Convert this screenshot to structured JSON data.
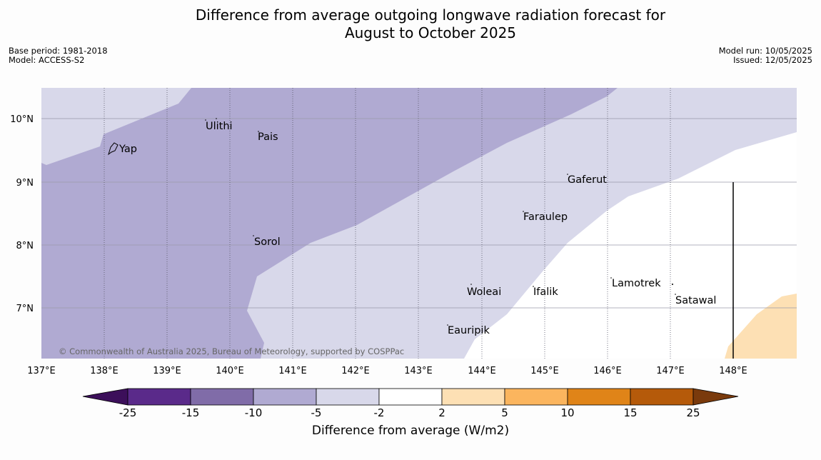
{
  "title_line1": "Difference from average outgoing longwave radiation forecast for",
  "title_line2": "August to October 2025",
  "meta": {
    "base_period": "Base period: 1981-2018",
    "model": "Model: ACCESS-S2",
    "model_run": "Model run: 10/05/2025",
    "issued": "Issued: 12/05/2025"
  },
  "copyright": "© Commonwealth of Australia 2025, Bureau of Meteorology, supported by COSPPac",
  "x_ticks": [
    "137°E",
    "138°E",
    "139°E",
    "140°E",
    "141°E",
    "142°E",
    "143°E",
    "144°E",
    "145°E",
    "146°E",
    "147°E",
    "148°E"
  ],
  "y_ticks": [
    "10°N",
    "9°N",
    "8°N",
    "7°N"
  ],
  "places": [
    {
      "name": "Yap"
    },
    {
      "name": "Ulithi"
    },
    {
      "name": "Pais"
    },
    {
      "name": "Gaferut"
    },
    {
      "name": "Faraulep"
    },
    {
      "name": "Sorol"
    },
    {
      "name": "Woleai"
    },
    {
      "name": "Ifalik"
    },
    {
      "name": "Lamotrek"
    },
    {
      "name": "Satawal"
    },
    {
      "name": "Eauripik"
    }
  ],
  "colorbar": {
    "label": "Difference from average (W/m2)",
    "ticks": [
      "-25",
      "-15",
      "-10",
      "-5",
      "-2",
      "2",
      "5",
      "10",
      "15",
      "25"
    ],
    "colors": {
      "below_-25": "#3c0f5a",
      "-25_-15": "#5a2a8a",
      "-15_-10": "#806ca8",
      "-10_-5": "#b0aad2",
      "-5_-2": "#d8d8ea",
      "-2_2": "#ffffff",
      "2_5": "#fde0b4",
      "5_10": "#fbb55e",
      "10_15": "#e08418",
      "15_25": "#b55a0a",
      "above_25": "#7a3a0c"
    }
  }
}
